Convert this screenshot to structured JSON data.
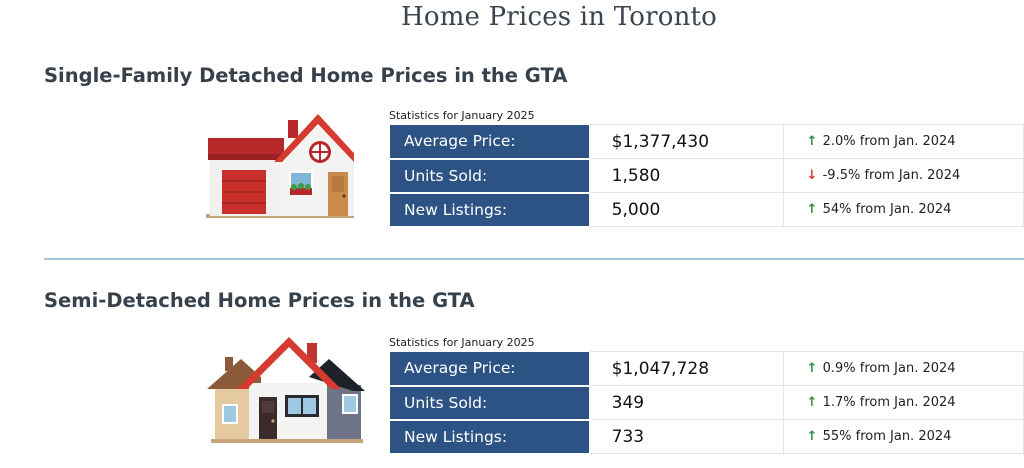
{
  "page": {
    "title": "Home Prices in Toronto"
  },
  "sections": [
    {
      "title": "Single-Family Detached Home Prices in the GTA",
      "caption": "Statistics for January 2025",
      "illustration": "detached-house-icon",
      "rows": [
        {
          "label": "Average Price:",
          "value": "$1,377,430",
          "direction": "up",
          "change": "2.0% from Jan. 2024"
        },
        {
          "label": "Units Sold:",
          "value": "1,580",
          "direction": "down",
          "change": "-9.5% from Jan. 2024"
        },
        {
          "label": "New Listings:",
          "value": "5,000",
          "direction": "up",
          "change": "54% from Jan. 2024"
        }
      ]
    },
    {
      "title": "Semi-Detached Home Prices in the GTA",
      "caption": "Statistics for January 2025",
      "illustration": "semi-detached-house-icon",
      "rows": [
        {
          "label": "Average Price:",
          "value": "$1,047,728",
          "direction": "up",
          "change": "0.9% from Jan. 2024"
        },
        {
          "label": "Units Sold:",
          "value": "349",
          "direction": "up",
          "change": "1.7% from Jan. 2024"
        },
        {
          "label": "New Listings:",
          "value": "733",
          "direction": "up",
          "change": "55% from Jan. 2024"
        }
      ]
    }
  ],
  "colors": {
    "label_bg": "#2d5384",
    "arrow_up": "#2f8f3a",
    "arrow_down": "#d23a2e",
    "divider": "#a8c2d8",
    "roof_red": "#d63b30"
  },
  "icons": {
    "up": "↑",
    "down": "↓"
  }
}
